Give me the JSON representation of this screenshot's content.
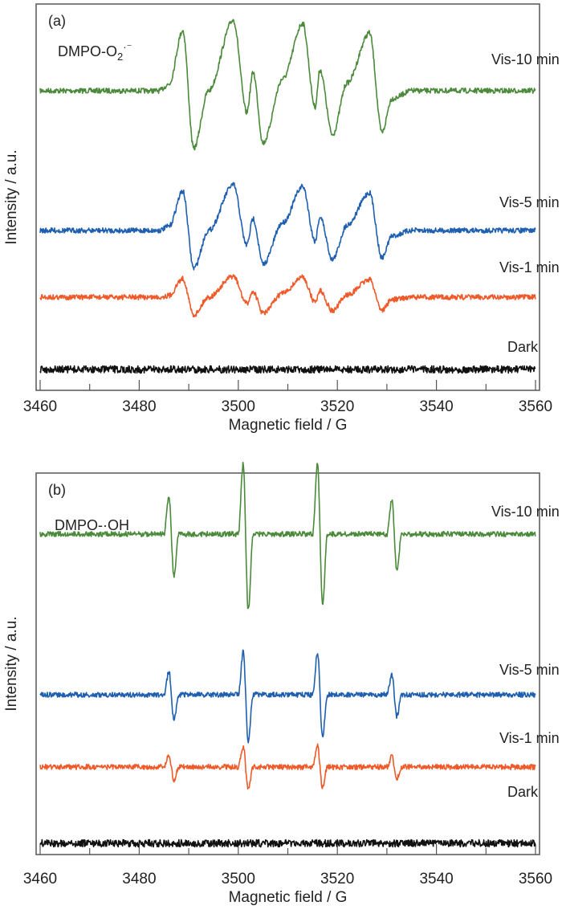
{
  "colors": {
    "Vis-10 min": "#4a8a3a",
    "Vis-5 min": "#1f5fb0",
    "Vis-1 min": "#ef5a2a",
    "Dark": "#111111"
  },
  "chart_data": [
    {
      "type": "line",
      "panel_label": "(a)",
      "annotation": {
        "main": "DMPO-O",
        "sub": "2",
        "sup": "·⁻"
      },
      "xlabel": "Magnetic field / G",
      "ylabel": "Intensity / a.u.",
      "xlim": [
        3460,
        3560
      ],
      "xticks": [
        3460,
        3480,
        3500,
        3520,
        3540,
        3560
      ],
      "grid": false,
      "series": [
        {
          "name": "Vis-10 min",
          "points": [
            [
              3460,
              0
            ],
            [
              3484,
              0
            ],
            [
              3486,
              8
            ],
            [
              3488.8,
              75
            ],
            [
              3491,
              -72
            ],
            [
              3494,
              0
            ],
            [
              3499,
              88
            ],
            [
              3501.7,
              -27
            ],
            [
              3503,
              23
            ],
            [
              3505,
              -65
            ],
            [
              3509,
              15
            ],
            [
              3513,
              84
            ],
            [
              3515.5,
              -20
            ],
            [
              3516.5,
              26
            ],
            [
              3519,
              -55
            ],
            [
              3522,
              10
            ],
            [
              3526.5,
              72
            ],
            [
              3529,
              -52
            ],
            [
              3531,
              -10
            ],
            [
              3535,
              0
            ],
            [
              3560,
              0
            ]
          ]
        },
        {
          "name": "Vis-5 min",
          "points": [
            [
              3460,
              0
            ],
            [
              3484,
              0
            ],
            [
              3486,
              5
            ],
            [
              3488.8,
              49
            ],
            [
              3491,
              -47
            ],
            [
              3494,
              0
            ],
            [
              3499,
              57
            ],
            [
              3501.7,
              -18
            ],
            [
              3503,
              15
            ],
            [
              3505,
              -42
            ],
            [
              3509,
              10
            ],
            [
              3513,
              55
            ],
            [
              3515.5,
              -13
            ],
            [
              3516.5,
              17
            ],
            [
              3519,
              -36
            ],
            [
              3522,
              7
            ],
            [
              3526.5,
              47
            ],
            [
              3529,
              -34
            ],
            [
              3531,
              -7
            ],
            [
              3535,
              0
            ],
            [
              3560,
              0
            ]
          ]
        },
        {
          "name": "Vis-1 min",
          "points": [
            [
              3460,
              0
            ],
            [
              3484,
              0
            ],
            [
              3486,
              2
            ],
            [
              3488.8,
              23
            ],
            [
              3491,
              -22
            ],
            [
              3494,
              0
            ],
            [
              3499,
              26
            ],
            [
              3501.7,
              -8
            ],
            [
              3503,
              7
            ],
            [
              3505,
              -20
            ],
            [
              3509,
              5
            ],
            [
              3513,
              25
            ],
            [
              3515.5,
              -6
            ],
            [
              3516.5,
              8
            ],
            [
              3519,
              -17
            ],
            [
              3522,
              3
            ],
            [
              3526.5,
              22
            ],
            [
              3529,
              -16
            ],
            [
              3531,
              -3
            ],
            [
              3535,
              0
            ],
            [
              3560,
              0
            ]
          ]
        },
        {
          "name": "Dark",
          "points": [
            [
              3460,
              0
            ],
            [
              3560,
              0
            ]
          ]
        }
      ]
    },
    {
      "type": "line",
      "panel_label": "(b)",
      "annotation": {
        "main": "DMPO-·OH",
        "sub": "",
        "sup": ""
      },
      "xlabel": "Magnetic field / G",
      "ylabel": "Intensity / a.u.",
      "xlim": [
        3460,
        3560
      ],
      "xticks": [
        3460,
        3480,
        3500,
        3520,
        3540,
        3560
      ],
      "grid": false,
      "series": [
        {
          "name": "Vis-10 min",
          "points": [
            [
              3460,
              0
            ],
            [
              3485,
              0
            ],
            [
              3486,
              48
            ],
            [
              3487,
              -52
            ],
            [
              3488,
              0
            ],
            [
              3500,
              0
            ],
            [
              3501,
              88
            ],
            [
              3502,
              -95
            ],
            [
              3503,
              0
            ],
            [
              3515,
              0
            ],
            [
              3516,
              88
            ],
            [
              3517,
              -88
            ],
            [
              3518,
              0
            ],
            [
              3530,
              0
            ],
            [
              3531,
              42
            ],
            [
              3532,
              -45
            ],
            [
              3533,
              0
            ],
            [
              3560,
              0
            ]
          ]
        },
        {
          "name": "Vis-5 min",
          "points": [
            [
              3460,
              0
            ],
            [
              3485,
              0
            ],
            [
              3486,
              29
            ],
            [
              3487,
              -31
            ],
            [
              3488,
              0
            ],
            [
              3500,
              0
            ],
            [
              3501,
              53
            ],
            [
              3502,
              -57
            ],
            [
              3503,
              0
            ],
            [
              3515,
              0
            ],
            [
              3516,
              53
            ],
            [
              3517,
              -53
            ],
            [
              3518,
              0
            ],
            [
              3530,
              0
            ],
            [
              3531,
              25
            ],
            [
              3532,
              -27
            ],
            [
              3533,
              0
            ],
            [
              3560,
              0
            ]
          ]
        },
        {
          "name": "Vis-1 min",
          "points": [
            [
              3460,
              0
            ],
            [
              3485,
              0
            ],
            [
              3486,
              14
            ],
            [
              3487,
              -16
            ],
            [
              3488,
              0
            ],
            [
              3500,
              0
            ],
            [
              3501,
              26
            ],
            [
              3502,
              -28
            ],
            [
              3503,
              0
            ],
            [
              3515,
              0
            ],
            [
              3516,
              26
            ],
            [
              3517,
              -26
            ],
            [
              3518,
              0
            ],
            [
              3530,
              0
            ],
            [
              3531,
              13
            ],
            [
              3532,
              -14
            ],
            [
              3533,
              0
            ],
            [
              3560,
              0
            ]
          ]
        },
        {
          "name": "Dark",
          "points": [
            [
              3460,
              0
            ],
            [
              3560,
              0
            ]
          ]
        }
      ]
    }
  ]
}
